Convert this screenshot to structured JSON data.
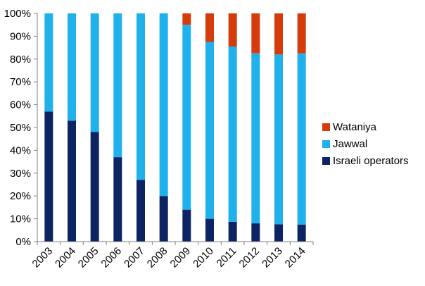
{
  "chart_data": {
    "type": "bar",
    "stacked": true,
    "percent_stacked": true,
    "categories": [
      "2003",
      "2004",
      "2005",
      "2006",
      "2007",
      "2008",
      "2009",
      "2010",
      "2011",
      "2012",
      "2013",
      "2014"
    ],
    "series": [
      {
        "name": "Israeli operators",
        "color": "#0c2461",
        "values": [
          57,
          53,
          48,
          37,
          27,
          20,
          14,
          10,
          8.7,
          8,
          7.6,
          7.4
        ]
      },
      {
        "name": "Jawwal",
        "color": "#1fb1ec",
        "values": [
          43,
          47,
          52,
          63,
          73,
          80,
          81,
          77.5,
          76.8,
          74.5,
          74.4,
          75.1
        ]
      },
      {
        "name": "Wataniya",
        "color": "#d63c0b",
        "values": [
          0,
          0,
          0,
          0,
          0,
          0,
          5,
          12.5,
          14.5,
          17.5,
          18,
          17.5
        ]
      }
    ],
    "ylim": [
      0,
      100
    ],
    "y_ticks": [
      "0%",
      "10%",
      "20%",
      "30%",
      "40%",
      "50%",
      "60%",
      "70%",
      "80%",
      "90%",
      "100%"
    ],
    "grid": false,
    "legend_position": "right",
    "title": "",
    "xlabel": "",
    "ylabel": ""
  }
}
